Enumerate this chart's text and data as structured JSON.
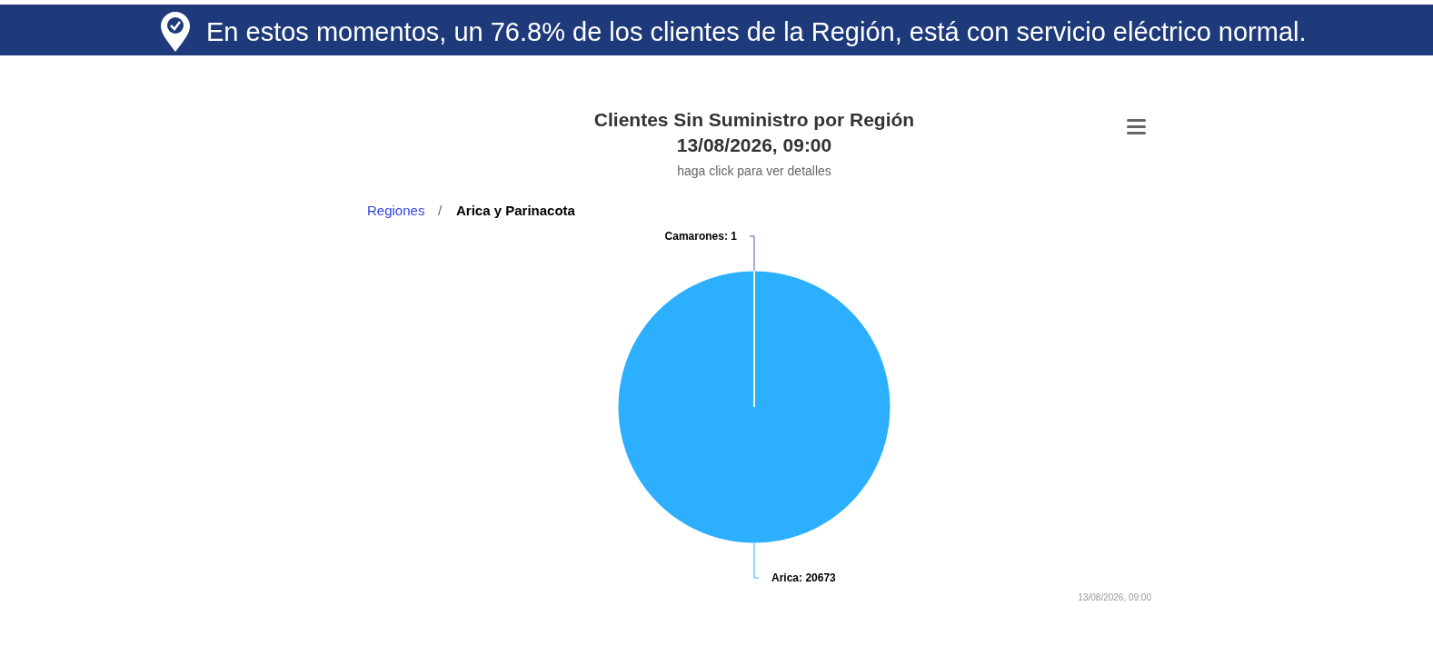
{
  "chart_data": {
    "type": "pie",
    "title": "Clientes Sin Suministro por Región\n13/08/2026, 09:00",
    "subtitle": "haga click para ver detalles",
    "annotations": [
      "En estos momentos, un 76.8% de los clientes de la Región, está con servicio eléctrico normal.",
      "Regiones",
      "/",
      "Arica y Parinacota",
      "13/08/2026, 09:00"
    ],
    "categories": [
      "Arica",
      "Camarones"
    ],
    "values": [
      20673,
      1
    ],
    "colors": [
      "#2caffe",
      "#544fc5"
    ],
    "value_labels": [
      ": 20673",
      ": 1"
    ]
  }
}
